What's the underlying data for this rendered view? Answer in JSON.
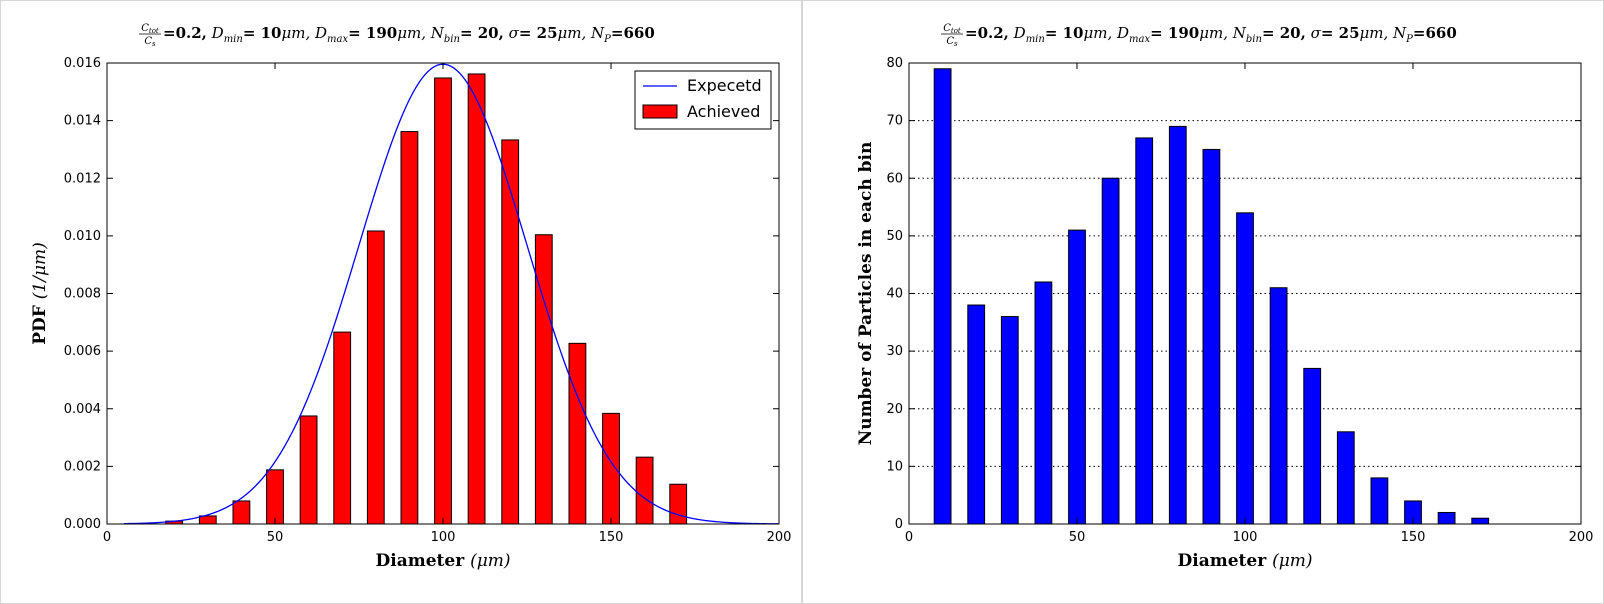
{
  "chart_data": [
    {
      "type": "bar",
      "title": "Ctot/Cs=0.2, Dmin= 10μm,  Dmax= 190μm,  Nbin= 20,  σ= 25μm,  NP=660",
      "title_parts": {
        "frac_num": "C",
        "frac_num_sub": "tot",
        "frac_den": "C",
        "frac_den_sub": "s",
        "ratio": "=0.2,",
        "dmin_sym": "D",
        "dmin_sub": "min",
        "dmin_val": "= 10",
        "dmax_sym": "D",
        "dmax_sub": "max",
        "dmax_val": "= 190",
        "nbin_sym": "N",
        "nbin_sub": "bin",
        "nbin_val": "= 20,",
        "sigma_sym": "σ",
        "sigma_val": "= 25",
        "np_sym": "N",
        "np_sub": "P",
        "np_val": "=660",
        "unit": "μm,"
      },
      "xlabel": "Diameter (μm)",
      "xlabel_parts": {
        "text": "Diameter ",
        "unit": "(μm)"
      },
      "ylabel": "PDF (1/μm)",
      "ylabel_parts": {
        "text": "PDF ",
        "unit": "(1/μm)"
      },
      "xlim": [
        0,
        200
      ],
      "ylim": [
        0,
        0.016
      ],
      "xticks": [
        0,
        50,
        100,
        150,
        200
      ],
      "yticks": [
        0.0,
        0.002,
        0.004,
        0.006,
        0.008,
        0.01,
        0.012,
        0.014,
        0.016
      ],
      "ytick_labels": [
        "0.000",
        "0.002",
        "0.004",
        "0.006",
        "0.008",
        "0.010",
        "0.012",
        "0.014",
        "0.016"
      ],
      "xtick_labels": [
        "0",
        "50",
        "100",
        "150",
        "200"
      ],
      "grid": false,
      "legend_position": "top-right",
      "bar_color": "#ff0000",
      "line_color": "#0000ff",
      "bar_width": 5,
      "bars": {
        "name": "Achieved",
        "x": [
          10,
          20,
          30,
          40,
          50,
          60,
          70,
          80,
          90,
          100,
          110,
          120,
          130,
          140,
          150,
          160,
          170,
          180,
          190
        ],
        "values": [
          0.0,
          0.0001,
          0.00028,
          0.0008,
          0.00188,
          0.00375,
          0.00666,
          0.01017,
          0.01362,
          0.01548,
          0.01562,
          0.01333,
          0.01004,
          0.00627,
          0.00384,
          0.00232,
          0.00138,
          0.0,
          0.0
        ]
      },
      "line": {
        "name": "Expecetd",
        "mean": 100,
        "sigma": 25,
        "x_range": [
          5,
          200
        ]
      }
    },
    {
      "type": "bar",
      "title": "Ctot/Cs=0.2, Dmin= 10μm,  Dmax= 190μm,  Nbin= 20,  σ= 25μm,  NP=660",
      "xlabel": "Diameter (μm)",
      "ylabel": "Number of Particles in each bin",
      "xlim": [
        0,
        200
      ],
      "ylim": [
        0,
        80
      ],
      "xticks": [
        0,
        50,
        100,
        150,
        200
      ],
      "xtick_labels": [
        "0",
        "50",
        "100",
        "150",
        "200"
      ],
      "yticks": [
        0,
        10,
        20,
        30,
        40,
        50,
        60,
        70,
        80
      ],
      "ytick_labels": [
        "0",
        "10",
        "20",
        "30",
        "40",
        "50",
        "60",
        "70",
        "80"
      ],
      "grid": true,
      "bar_color": "#0000ff",
      "bar_width": 5,
      "bars": {
        "x": [
          10,
          20,
          30,
          40,
          50,
          60,
          70,
          80,
          90,
          100,
          110,
          120,
          130,
          140,
          150,
          160,
          170,
          180,
          190
        ],
        "values": [
          79,
          38,
          36,
          42,
          51,
          60,
          67,
          69,
          65,
          54,
          41,
          27,
          16,
          8,
          4,
          2,
          1,
          0,
          0
        ]
      }
    }
  ]
}
